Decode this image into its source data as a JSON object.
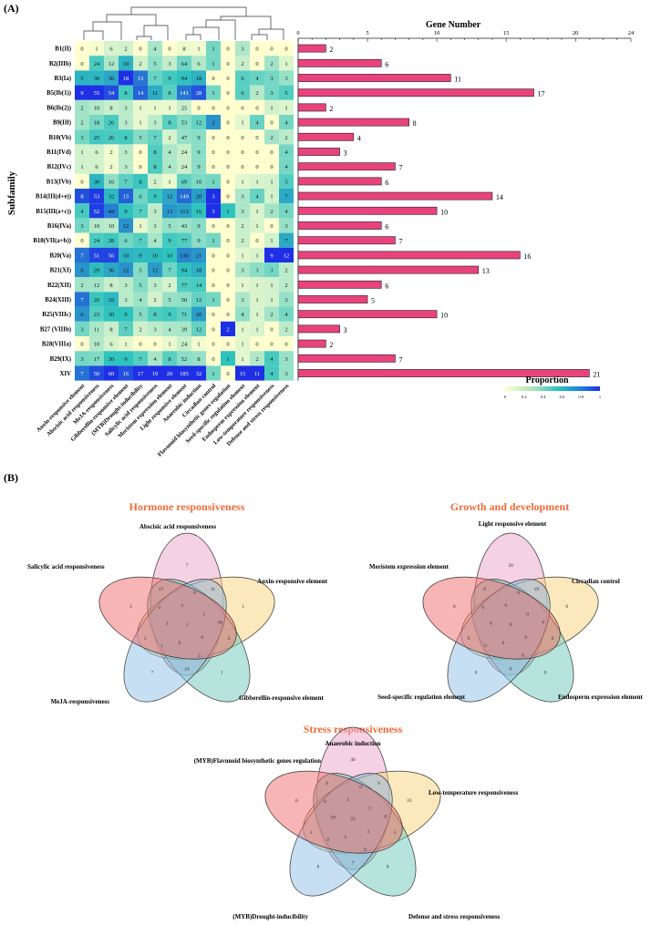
{
  "panels": {
    "a_label": "(A)",
    "b_label": "(B)"
  },
  "chart_data": [
    {
      "type": "heatmap",
      "title": "Gene Number",
      "ylabel": "Subfamily",
      "legend_title": "Proportion",
      "legend_ticks": [
        "0",
        "0.2",
        "0.4",
        "0.6",
        "0.8",
        "1"
      ],
      "colors": {
        "low": "#ffffd0",
        "mid": "#2fc3be",
        "high": "#1e2fe6",
        "bar": "#e8437c"
      },
      "columns": [
        "Auxin-responsive element",
        "Abscisic acid responsiveness",
        "MeJA-responsiveness",
        "Gibberellin-responsive element",
        "(MYB)Drought-inducibility",
        "Salicylic acid responsiveness",
        "Meristem expression element",
        "Light responsive element",
        "Anaerobic induction",
        "Circadian control",
        "Flavonoid biosynthetic genes regulation",
        "Seed-specific regulation element",
        "Endosperm expression element",
        "Low-temperature responsiveness",
        "Defense and stress responsiveness"
      ],
      "rows": [
        {
          "name": "B1(II)",
          "values": [
            0,
            1,
            6,
            2,
            0,
            4,
            0,
            8,
            1,
            1,
            0,
            3,
            0,
            0,
            0
          ],
          "genes": 2
        },
        {
          "name": "B2(IIIb)",
          "values": [
            0,
            24,
            12,
            10,
            2,
            5,
            3,
            64,
            6,
            1,
            0,
            2,
            0,
            2,
            1
          ],
          "genes": 6
        },
        {
          "name": "B3(Ia)",
          "values": [
            5,
            30,
            36,
            18,
            13,
            7,
            9,
            94,
            18,
            0,
            0,
            6,
            4,
            3,
            3
          ],
          "genes": 11
        },
        {
          "name": "B5(Ib(1))",
          "values": [
            9,
            55,
            54,
            8,
            14,
            11,
            8,
            141,
            28,
            1,
            0,
            6,
            2,
            3,
            5
          ],
          "genes": 17
        },
        {
          "name": "B6(Ib(2))",
          "values": [
            2,
            10,
            8,
            3,
            1,
            1,
            1,
            25,
            0,
            0,
            0,
            0,
            0,
            1,
            1
          ],
          "genes": 2
        },
        {
          "name": "B9(IIf)",
          "values": [
            2,
            18,
            26,
            3,
            1,
            3,
            8,
            53,
            12,
            2,
            0,
            1,
            4,
            0,
            4
          ],
          "genes": 8
        },
        {
          "name": "B10(Vb)",
          "values": [
            3,
            25,
            26,
            8,
            5,
            7,
            2,
            47,
            9,
            0,
            0,
            0,
            0,
            2,
            2
          ],
          "genes": 4
        },
        {
          "name": "B11(IVd)",
          "values": [
            1,
            6,
            2,
            3,
            0,
            8,
            4,
            24,
            9,
            0,
            0,
            0,
            0,
            0,
            4
          ],
          "genes": 3
        },
        {
          "name": "B12(IVc)",
          "values": [
            1,
            6,
            2,
            3,
            0,
            8,
            4,
            24,
            9,
            0,
            0,
            0,
            0,
            0,
            4
          ],
          "genes": 7
        },
        {
          "name": "B13(IVb)",
          "values": [
            0,
            30,
            16,
            7,
            8,
            2,
            1,
            69,
            10,
            1,
            0,
            1,
            1,
            1,
            5
          ],
          "genes": 6
        },
        {
          "name": "B14(III(d+e))",
          "values": [
            8,
            53,
            32,
            15,
            6,
            9,
            12,
            149,
            20,
            3,
            0,
            3,
            4,
            1,
            7
          ],
          "genes": 14
        },
        {
          "name": "B15(III(a+c))",
          "values": [
            4,
            52,
            44,
            9,
            7,
            3,
            13,
            113,
            16,
            3,
            1,
            3,
            1,
            2,
            4
          ],
          "genes": 10
        },
        {
          "name": "B16(IVa)",
          "values": [
            3,
            10,
            10,
            12,
            1,
            3,
            5,
            43,
            9,
            0,
            0,
            2,
            1,
            0,
            3
          ],
          "genes": 6
        },
        {
          "name": "B18(VII(a+b))",
          "values": [
            0,
            24,
            28,
            6,
            7,
            4,
            9,
            77,
            9,
            1,
            0,
            2,
            0,
            1,
            7
          ],
          "genes": 7
        },
        {
          "name": "B20(Va)",
          "values": [
            7,
            51,
            56,
            10,
            9,
            10,
            10,
            130,
            21,
            0,
            0,
            1,
            1,
            9,
            12
          ],
          "genes": 16
        },
        {
          "name": "B21(XI)",
          "values": [
            6,
            29,
            36,
            12,
            5,
            12,
            7,
            94,
            18,
            0,
            0,
            3,
            3,
            3,
            2
          ],
          "genes": 13
        },
        {
          "name": "B22(XII)",
          "values": [
            2,
            12,
            8,
            3,
            5,
            3,
            2,
            77,
            14,
            0,
            0,
            1,
            1,
            1,
            2
          ],
          "genes": 6
        },
        {
          "name": "B24(XIII)",
          "values": [
            7,
            26,
            32,
            3,
            4,
            2,
            5,
            50,
            12,
            1,
            0,
            3,
            1,
            1,
            3
          ],
          "genes": 5
        },
        {
          "name": "B25(VIIIc)",
          "values": [
            6,
            23,
            30,
            9,
            5,
            8,
            9,
            71,
            20,
            0,
            0,
            4,
            1,
            2,
            4
          ],
          "genes": 10
        },
        {
          "name": "B27 (VIIIb)",
          "values": [
            3,
            11,
            8,
            7,
            2,
            3,
            4,
            39,
            12,
            0,
            2,
            1,
            1,
            0,
            2
          ],
          "genes": 3
        },
        {
          "name": "B28(VIIIa)",
          "values": [
            0,
            10,
            6,
            1,
            0,
            0,
            1,
            24,
            1,
            0,
            0,
            1,
            0,
            0,
            0
          ],
          "genes": 2
        },
        {
          "name": "B29(IX)",
          "values": [
            3,
            17,
            30,
            9,
            7,
            4,
            8,
            52,
            8,
            0,
            1,
            1,
            2,
            4,
            3
          ],
          "genes": 7
        },
        {
          "name": "XIV",
          "values": [
            7,
            50,
            60,
            16,
            17,
            19,
            20,
            185,
            32,
            1,
            0,
            15,
            11,
            4,
            3
          ],
          "genes": 21
        }
      ],
      "bar_axis": {
        "range": [
          0,
          24
        ],
        "ticks": [
          "0",
          "5",
          "10",
          "15",
          "20",
          "24"
        ]
      }
    },
    {
      "type": "venn",
      "title": "Hormone responsiveness",
      "sets": [
        "Abscisic acid responsiveness",
        "Auxin-responsive element",
        "Gibberellin-responsive element",
        "MeJA-responsiveness",
        "Salicylic acid responsiveness"
      ],
      "colors": [
        "#e9a4c8",
        "#f8d27a",
        "#6dc8b8",
        "#8fc0e6",
        "#ef6b6b"
      ],
      "counts": [
        "7",
        "1",
        "1",
        "7",
        "3",
        "11",
        "2",
        "24",
        "1",
        "17",
        "6",
        "30",
        "2",
        "1",
        "4",
        "3",
        "1",
        "0",
        "0",
        "1",
        "1"
      ]
    },
    {
      "type": "venn",
      "title": "Growth and development",
      "sets": [
        "Light responsive element",
        "Circadian control",
        "Endosperm expression element",
        "Seed-specific regulation element",
        "Meristem expression element"
      ],
      "colors": [
        "#e9a4c8",
        "#f8d27a",
        "#6dc8b8",
        "#8fc0e6",
        "#ef6b6b"
      ],
      "counts": [
        "30",
        "0",
        "0",
        "0",
        "0",
        "19",
        "0",
        "0",
        "0",
        "0",
        "0",
        "0",
        "0",
        "0",
        "0",
        "0",
        "0",
        "0",
        "0",
        "0",
        "0"
      ]
    },
    {
      "type": "venn",
      "title": "Stress responsiveness",
      "sets": [
        "Anaerobic induction",
        "Low-temperature responsiveness",
        "Defense and stress responsiveness",
        "(MYB)Drought-inducibility",
        "(MYB)Flavonoid biosynthetic genes regulation"
      ],
      "colors": [
        "#e9a4c8",
        "#f8d27a",
        "#6dc8b8",
        "#8fc0e6",
        "#ef6b6b"
      ],
      "counts": [
        "40",
        "33",
        "8",
        "8",
        "6",
        "0",
        "1",
        "7",
        "1",
        "0",
        "0",
        "0",
        "0",
        "0",
        "0",
        "1",
        "2",
        "3",
        "1",
        "18",
        "22"
      ]
    }
  ]
}
